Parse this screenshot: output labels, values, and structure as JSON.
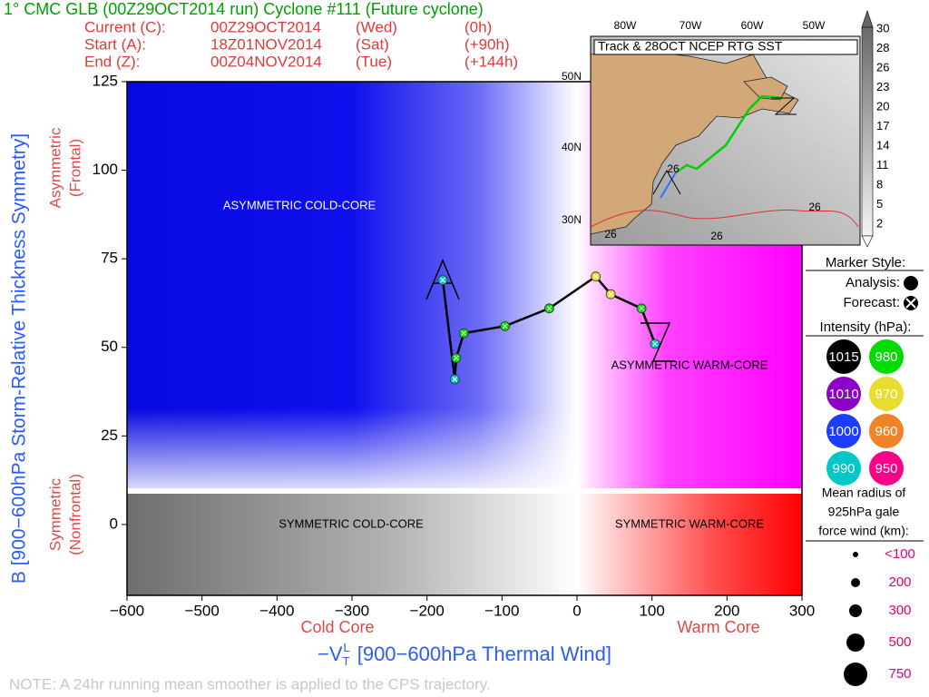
{
  "header": {
    "title": "1° CMC GLB (00Z29OCT2014 run) Cyclone #111 (Future cyclone)",
    "rows": [
      [
        "Current (C):",
        "00Z29OCT2014",
        "(Wed)",
        "(0h)"
      ],
      [
        "Start (A):",
        "18Z01NOV2014",
        "(Sat)",
        "(+90h)"
      ],
      [
        "End (Z):",
        "00Z04NOV2014",
        "(Tue)",
        "(+144h)"
      ]
    ]
  },
  "chart_data": {
    "type": "phase",
    "x_label": {
      "prefix": "−V",
      "sub": "T",
      "sup": "L",
      "text": "[900−600hPa Thermal Wind]"
    },
    "x_sublabels": [
      "Cold Core",
      "Warm Core"
    ],
    "y_label": "B [900−600hPa Storm-Relative Thickness Symmetry]",
    "y_sublabels": [
      [
        "Asymmetric",
        "(Frontal)"
      ],
      [
        "Symmetric",
        "(Nonfrontal)"
      ]
    ],
    "regions": [
      "ASYMMETRIC COLD-CORE",
      "ASYMMETRIC WARM-CORE",
      "SYMMETRIC COLD-CORE",
      "SYMMETRIC WARM-CORE"
    ],
    "xlim": [
      -600,
      300
    ],
    "ylim": [
      -20,
      125
    ],
    "xticks": [
      {
        "value": -600,
        "label": "−600"
      },
      {
        "value": -500,
        "label": "−500"
      },
      {
        "value": -400,
        "label": "−400"
      },
      {
        "value": -300,
        "label": "−300"
      },
      {
        "value": -200,
        "label": "−200"
      },
      {
        "value": -100,
        "label": "−100"
      },
      0,
      100,
      200,
      300
    ],
    "yticks": [
      0,
      25,
      50,
      75,
      100,
      125
    ],
    "x": [
      -179,
      -163,
      -161,
      -151,
      -96,
      -37,
      25,
      45,
      86,
      104
    ],
    "values": [
      69,
      41,
      47,
      54,
      56,
      61,
      70,
      65,
      61,
      51
    ],
    "point_colors": [
      "#00c8c8",
      "#00c8c8",
      "#00dc00",
      "#00dc00",
      "#00dc00",
      "#00dc00",
      "#e6dc32",
      "#e6dc32",
      "#00dc00",
      "#00c8c8"
    ],
    "line_color": "#000000"
  },
  "legend": {
    "marker_title": "Marker Style:",
    "analysis": "Analysis:",
    "forecast": "Forecast:",
    "intensity_title": "Intensity (hPa):",
    "intensities": [
      {
        "label": "1015",
        "color": "#000000"
      },
      {
        "label": "980",
        "color": "#00dc00"
      },
      {
        "label": "1010",
        "color": "#8c00c8"
      },
      {
        "label": "970",
        "color": "#e6dc32"
      },
      {
        "label": "1000",
        "color": "#1e3cff"
      },
      {
        "label": "960",
        "color": "#f08228"
      },
      {
        "label": "990",
        "color": "#00c8c8"
      },
      {
        "label": "950",
        "color": "#fa0087"
      }
    ],
    "radius_title": [
      "Mean radius of",
      "925hPa gale",
      "force wind (km):"
    ],
    "sizes": [
      "<100",
      "200",
      "300",
      "500",
      "750"
    ]
  },
  "inset": {
    "title": "Track & 28OCT NCEP RTG SST",
    "lon_labels": [
      "80W",
      "70W",
      "60W",
      "50W"
    ],
    "lat_labels": [
      "50N",
      "40N",
      "30N"
    ],
    "contour_labels": [
      "26",
      "26",
      "26",
      "26"
    ],
    "colorbar": [
      "30",
      "28",
      "26",
      "23",
      "20",
      "17",
      "14",
      "11",
      "8",
      "5",
      "2"
    ]
  },
  "note": "NOTE:  A 24hr running mean smoother is applied to the CPS trajectory."
}
